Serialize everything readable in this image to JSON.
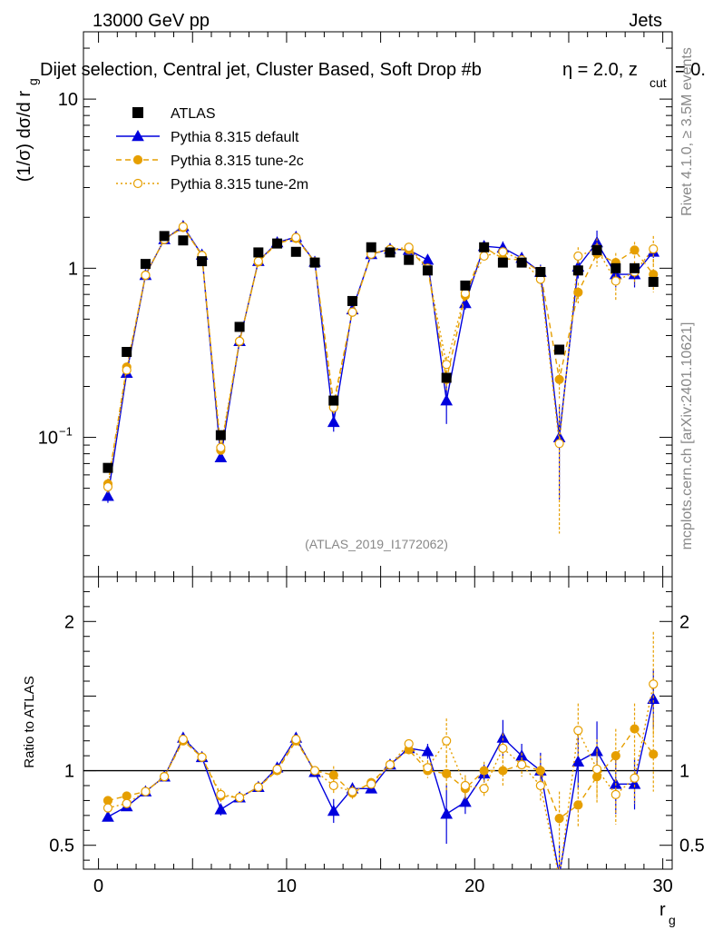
{
  "header": {
    "energy": "13000 GeV pp",
    "process": "Jets",
    "selection": "Dijet selection, Central jet, Cluster Based, Soft Drop #b",
    "eta_label": "η = 2.0, z",
    "zcut_sub": "cut",
    "zcut_tail": "= 0.",
    "analysis_id": "(ATLAS_2019_I1772062)"
  },
  "side_labels": {
    "rivet": "Rivet 4.1.0, ≥ 3.5M events",
    "mcplots": "mcplots.cern.ch [arXiv:2401.10621]"
  },
  "colors": {
    "data": "#000000",
    "default": "#0000dd",
    "tune2c": "#e69f00",
    "tune2m": "#e69f00"
  },
  "chart_data": [
    {
      "type": "scatter",
      "panel": "main",
      "ylabel": "(1/σ) dσ/d r",
      "ylabel_sub": "g",
      "yscale": "log",
      "ylim": [
        0.015,
        25
      ],
      "xlim": [
        -0.8,
        30.5
      ],
      "y_tick_labels": [
        {
          "value": 10,
          "label": "10"
        },
        {
          "value": 1,
          "label": "1"
        },
        {
          "value": 0.1,
          "label": "10",
          "sup": "−1"
        }
      ],
      "legend": [
        "ATLAS",
        "Pythia 8.315 default",
        "Pythia 8.315 tune-2c",
        "Pythia 8.315 tune-2m"
      ],
      "legend_position": "top-left",
      "x": [
        0.5,
        1.5,
        2.5,
        3.5,
        4.5,
        5.5,
        6.5,
        7.5,
        8.5,
        9.5,
        10.5,
        11.5,
        12.5,
        13.5,
        14.5,
        15.5,
        16.5,
        17.5,
        18.5,
        19.5,
        20.5,
        21.5,
        22.5,
        23.5,
        24.5,
        25.5,
        26.5,
        27.5,
        28.5,
        29.5
      ],
      "series": [
        {
          "name": "ATLAS",
          "style": "square",
          "values": [
            0.066,
            0.32,
            1.06,
            1.55,
            1.46,
            1.1,
            0.103,
            0.45,
            1.24,
            1.4,
            1.25,
            1.08,
            0.165,
            0.64,
            1.33,
            1.24,
            1.12,
            0.97,
            0.225,
            0.79,
            1.33,
            1.08,
            1.08,
            0.95,
            0.33,
            0.97,
            1.28,
            1.0,
            1.0,
            0.83
          ]
        },
        {
          "name": "Pythia 8.315 default",
          "style": "triangle-solid",
          "values": [
            0.045,
            0.24,
            0.91,
            1.48,
            1.77,
            1.2,
            0.076,
            0.37,
            1.1,
            1.42,
            1.53,
            1.09,
            0.123,
            0.57,
            1.21,
            1.3,
            1.28,
            1.12,
            0.165,
            0.62,
            1.35,
            1.32,
            1.15,
            0.95,
            0.1,
            1.02,
            1.42,
            0.92,
            0.92,
            1.25
          ],
          "errors": [
            0.004,
            0.01,
            0.02,
            0.03,
            0.03,
            0.03,
            0.004,
            0.01,
            0.02,
            0.03,
            0.03,
            0.02,
            0.015,
            0.02,
            0.03,
            0.03,
            0.03,
            0.04,
            0.045,
            0.05,
            0.06,
            0.12,
            0.08,
            0.1,
            0.057,
            0.15,
            0.25,
            0.15,
            0.15,
            0.1
          ]
        },
        {
          "name": "Pythia 8.315 tune-2c",
          "style": "circle-dashed",
          "values": [
            0.053,
            0.26,
            0.91,
            1.48,
            1.74,
            1.19,
            0.084,
            0.37,
            1.09,
            1.4,
            1.5,
            1.09,
            0.16,
            0.55,
            1.22,
            1.29,
            1.29,
            1.0,
            0.22,
            0.69,
            1.33,
            1.14,
            1.12,
            0.95,
            0.22,
            0.72,
            1.22,
            1.08,
            1.28,
            0.92
          ],
          "errors": [
            0.004,
            0.01,
            0.02,
            0.03,
            0.03,
            0.03,
            0.004,
            0.01,
            0.02,
            0.03,
            0.03,
            0.02,
            0.012,
            0.02,
            0.03,
            0.03,
            0.03,
            0.04,
            0.03,
            0.05,
            0.06,
            0.08,
            0.07,
            0.08,
            0.05,
            0.1,
            0.2,
            0.15,
            0.15,
            0.2
          ]
        },
        {
          "name": "Pythia 8.315 tune-2m",
          "style": "circle-open-dotted",
          "values": [
            0.051,
            0.25,
            0.91,
            1.48,
            1.76,
            1.19,
            0.087,
            0.37,
            1.1,
            1.41,
            1.52,
            1.09,
            0.15,
            0.55,
            1.21,
            1.29,
            1.33,
            1.0,
            0.27,
            0.71,
            1.18,
            1.25,
            1.12,
            0.86,
            0.092,
            1.18,
            1.3,
            0.84,
            0.95,
            1.3
          ],
          "errors": [
            0.004,
            0.01,
            0.02,
            0.03,
            0.03,
            0.03,
            0.004,
            0.01,
            0.02,
            0.03,
            0.03,
            0.02,
            0.012,
            0.02,
            0.03,
            0.03,
            0.03,
            0.04,
            0.03,
            0.05,
            0.06,
            0.08,
            0.07,
            0.08,
            0.065,
            0.15,
            0.2,
            0.2,
            0.15,
            0.25
          ]
        }
      ]
    },
    {
      "type": "scatter",
      "panel": "ratio",
      "ylabel": "Ratio to ATLAS",
      "xlabel": "r",
      "xlabel_sub": "g",
      "ylim": [
        0.34,
        2.3
      ],
      "xlim": [
        -0.8,
        30.5
      ],
      "reference_line": 1,
      "y_tick_labels": [
        {
          "value": 2,
          "label": "2"
        },
        {
          "value": 1,
          "label": "1"
        },
        {
          "value": 0.5,
          "label": "0.5"
        }
      ],
      "x_tick_labels": [
        {
          "value": 0,
          "label": "0"
        },
        {
          "value": 10,
          "label": "10"
        },
        {
          "value": 20,
          "label": "20"
        },
        {
          "value": 30,
          "label": "30"
        }
      ],
      "x": [
        0.5,
        1.5,
        2.5,
        3.5,
        4.5,
        5.5,
        6.5,
        7.5,
        8.5,
        9.5,
        10.5,
        11.5,
        12.5,
        13.5,
        14.5,
        15.5,
        16.5,
        17.5,
        18.5,
        19.5,
        20.5,
        21.5,
        22.5,
        23.5,
        24.5,
        25.5,
        26.5,
        27.5,
        28.5,
        29.5
      ],
      "series": [
        {
          "name": "Pythia 8.315 default",
          "values": [
            0.69,
            0.76,
            0.86,
            0.96,
            1.22,
            1.09,
            0.74,
            0.82,
            0.89,
            1.02,
            1.22,
            0.99,
            0.73,
            0.88,
            0.88,
            1.04,
            1.15,
            1.13,
            0.71,
            0.79,
            0.98,
            1.22,
            1.1,
            1.0,
            0.3,
            1.06,
            1.13,
            0.91,
            0.91,
            1.48
          ],
          "errors": [
            0.03,
            0.02,
            0.02,
            0.02,
            0.02,
            0.02,
            0.04,
            0.02,
            0.02,
            0.02,
            0.02,
            0.02,
            0.08,
            0.04,
            0.03,
            0.02,
            0.03,
            0.05,
            0.2,
            0.08,
            0.06,
            0.12,
            0.08,
            0.12,
            0.2,
            0.18,
            0.2,
            0.2,
            0.17,
            0.2
          ]
        },
        {
          "name": "Pythia 8.315 tune-2c",
          "values": [
            0.8,
            0.83,
            0.86,
            0.96,
            1.2,
            1.09,
            0.83,
            0.82,
            0.89,
            1.0,
            1.2,
            1.0,
            0.97,
            0.85,
            0.92,
            1.04,
            1.14,
            1.0,
            0.98,
            0.88,
            1.0,
            1.0,
            1.04,
            1.0,
            0.68,
            0.77,
            0.96,
            1.1,
            1.28,
            1.11
          ],
          "errors": [
            0.03,
            0.02,
            0.02,
            0.02,
            0.02,
            0.02,
            0.04,
            0.02,
            0.02,
            0.02,
            0.02,
            0.02,
            0.06,
            0.04,
            0.03,
            0.02,
            0.03,
            0.05,
            0.12,
            0.07,
            0.06,
            0.1,
            0.08,
            0.1,
            0.18,
            0.15,
            0.18,
            0.18,
            0.17,
            0.25
          ]
        },
        {
          "name": "Pythia 8.315 tune-2m",
          "values": [
            0.75,
            0.78,
            0.86,
            0.96,
            1.21,
            1.09,
            0.84,
            0.82,
            0.89,
            1.01,
            1.21,
            1.0,
            0.9,
            0.86,
            0.91,
            1.04,
            1.18,
            1.02,
            1.2,
            0.9,
            0.88,
            1.15,
            1.04,
            0.9,
            0.28,
            1.27,
            1.01,
            0.84,
            0.95,
            1.58
          ],
          "errors": [
            0.03,
            0.02,
            0.02,
            0.02,
            0.02,
            0.02,
            0.04,
            0.02,
            0.02,
            0.02,
            0.02,
            0.02,
            0.06,
            0.04,
            0.03,
            0.02,
            0.03,
            0.05,
            0.15,
            0.07,
            0.06,
            0.1,
            0.08,
            0.1,
            0.2,
            0.18,
            0.2,
            0.2,
            0.17,
            0.35
          ]
        }
      ]
    }
  ]
}
